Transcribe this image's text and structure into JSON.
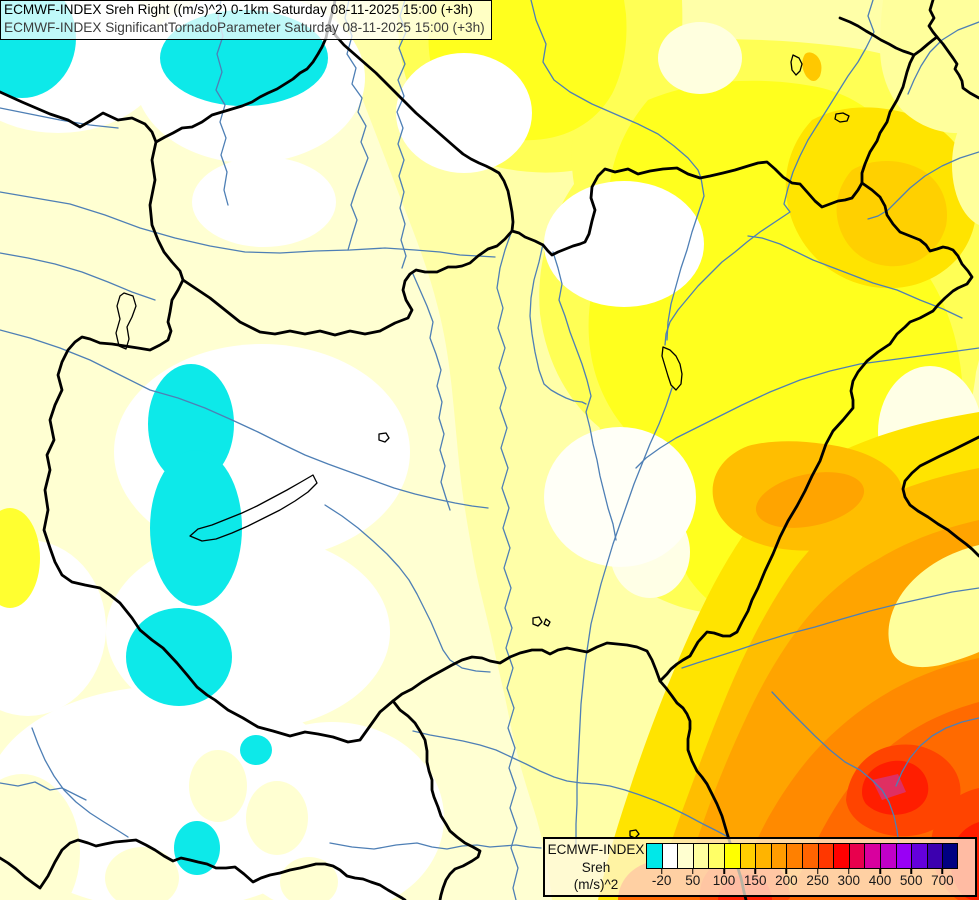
{
  "title": {
    "line1": "ECMWF-INDEX Sreh Right ((m/s)^2) 0-1km Saturday 08-11-2025 15:00 (+3h)",
    "line2": "ECMWF-INDEX SignificantTornadoParameter Saturday 08-11-2025 15:00 (+3h)"
  },
  "legend": {
    "product": "ECMWF-INDEX",
    "parameter": "Sreh",
    "units": "(m/s)^2",
    "colors": [
      "#00E8E8",
      "#FFFFFF",
      "#FFFFD0",
      "#FFFFA0",
      "#FFFF66",
      "#FFFF00",
      "#FFCE00",
      "#FFB400",
      "#FF9C00",
      "#FF8000",
      "#FF6400",
      "#FF3700",
      "#FF0000",
      "#E8004D",
      "#D8009E",
      "#C000C8",
      "#9900F5",
      "#6400DC",
      "#3C00AF",
      "#000082"
    ],
    "ticks": [
      {
        "label": "-20",
        "boundary": 1
      },
      {
        "label": "50",
        "boundary": 3
      },
      {
        "label": "100",
        "boundary": 5
      },
      {
        "label": "150",
        "boundary": 7
      },
      {
        "label": "200",
        "boundary": 9
      },
      {
        "label": "250",
        "boundary": 11
      },
      {
        "label": "300",
        "boundary": 13
      },
      {
        "label": "400",
        "boundary": 15
      },
      {
        "label": "500",
        "boundary": 17
      },
      {
        "label": "700",
        "boundary": 19
      }
    ]
  }
}
